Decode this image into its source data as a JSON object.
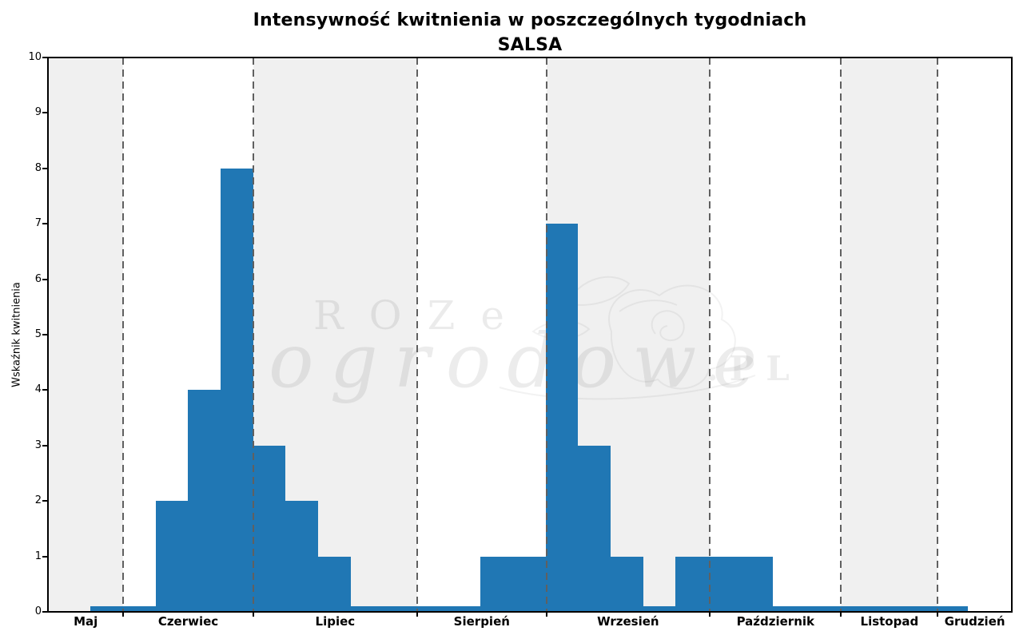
{
  "title": {
    "line1": "Intensywność kwitnienia w poszczególnych tygodniach",
    "line2": "SALSA"
  },
  "watermark": {
    "brand_top": "ROZe",
    "brand_script": "ogrodowe",
    "brand_suffix": ".PL",
    "flower_icon": "rose-line-art"
  },
  "colors": {
    "bar": "#2077b4",
    "shaded_band": "#f0f0f0",
    "separator": "#606060",
    "spine": "#000000",
    "background": "#ffffff"
  },
  "chart_data": {
    "type": "bar",
    "title": "Intensywność kwitnienia w poszczególnych tygodniach",
    "subtitle": "SALSA",
    "xlabel": "",
    "ylabel": "Wskaźnik kwitnienia",
    "x_unit": "tydzień (weekly bins)",
    "axis": {
      "x_min": 0,
      "x_max": 29.65,
      "y_min": 0,
      "y_max": 10,
      "grid": false
    },
    "yticks": [
      0,
      1,
      2,
      3,
      4,
      5,
      6,
      7,
      8,
      9,
      10
    ],
    "bars": {
      "start_week": 1.31,
      "bin_width_weeks": 1,
      "values": [
        0.1,
        0.1,
        2,
        4,
        8,
        3,
        2,
        1,
        0.1,
        0.1,
        0.1,
        0.1,
        1,
        1,
        7,
        3,
        1,
        0.1,
        1,
        1,
        1,
        0.1,
        0.1,
        0.1,
        0.1,
        0.1,
        0.1
      ]
    },
    "months": [
      {
        "label": "Maj",
        "start": 0.0,
        "end": 2.32,
        "shaded": true
      },
      {
        "label": "Czerwiec",
        "start": 2.32,
        "end": 6.31,
        "shaded": false
      },
      {
        "label": "Lipiec",
        "start": 6.31,
        "end": 11.36,
        "shaded": true
      },
      {
        "label": "Sierpień",
        "start": 11.36,
        "end": 15.33,
        "shaded": false
      },
      {
        "label": "Wrzesień",
        "start": 15.33,
        "end": 20.36,
        "shaded": true
      },
      {
        "label": "Październik",
        "start": 20.36,
        "end": 24.4,
        "shaded": false
      },
      {
        "label": "Listopad",
        "start": 24.4,
        "end": 27.37,
        "shaded": true
      },
      {
        "label": "Grudzień",
        "start": 27.37,
        "end": 29.65,
        "shaded": false
      }
    ],
    "separator_style": "dashed",
    "legend": null
  }
}
